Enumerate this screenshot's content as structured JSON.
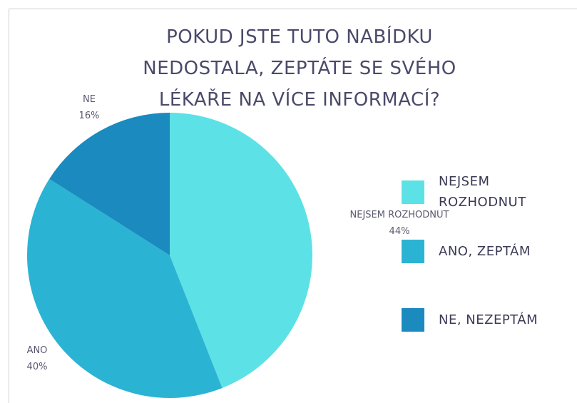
{
  "chart_data": {
    "type": "pie",
    "title": "POKUD JSTE TUTO NABÍDKU NEDOSTALA, ZEPTÁTE SE SVÉHO LÉKAŘE NA VÍCE INFORMACÍ?",
    "categories": [
      "NEJSEM ROZHODNUT",
      "ANO, ZEPTÁM",
      "NE, NEZEPTÁM"
    ],
    "label_names": [
      "NEJSEM ROZHODNUT",
      "ANO",
      "NE"
    ],
    "values": [
      44,
      40,
      16
    ],
    "value_labels": [
      "44%",
      "40%",
      "16%"
    ],
    "colors": [
      "#5ce1e6",
      "#2bb3d4",
      "#1a8abf"
    ],
    "legend": "right"
  }
}
